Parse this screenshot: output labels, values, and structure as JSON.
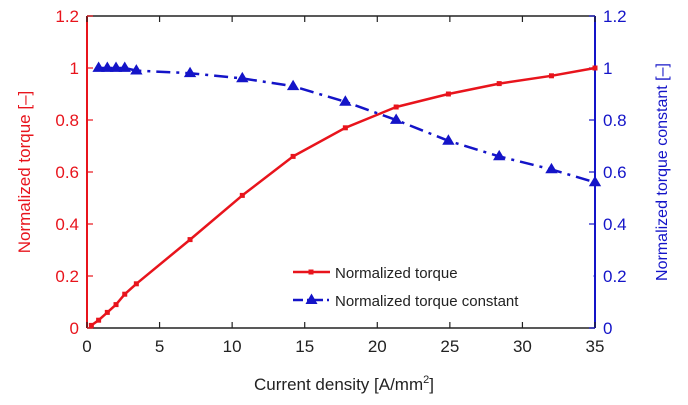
{
  "chart_data": {
    "type": "line",
    "title": "",
    "xlabel": "Current density [A/mm²]",
    "xlabel_main": "Current density [A/mm",
    "xlabel_sup": "2",
    "xlabel_end": "]",
    "ylabel_left": "Normalized torque [–]",
    "ylabel_right": "Normalized torque constant [–]",
    "xlim": [
      0,
      35
    ],
    "ylim_left": [
      0,
      1.2
    ],
    "ylim_right": [
      0,
      1.2
    ],
    "x_ticks": [
      0,
      5,
      10,
      15,
      20,
      25,
      30,
      35
    ],
    "x_tick_labels": [
      "0",
      "5",
      "10",
      "15",
      "20",
      "25",
      "30",
      "35"
    ],
    "y_ticks": [
      0,
      0.2,
      0.4,
      0.6,
      0.8,
      1,
      1.2
    ],
    "y_tick_labels": [
      "0",
      "0.2",
      "0.4",
      "0.6",
      "0.8",
      "1",
      "1.2"
    ],
    "grid": false,
    "legend_position": "bottom-right",
    "series": [
      {
        "name": "Normalized torque",
        "axis": "left",
        "color": "#e8141c",
        "line_style": "solid",
        "marker": "square",
        "x": [
          0.3,
          0.8,
          1.4,
          2.0,
          2.6,
          3.4,
          7.1,
          10.7,
          14.2,
          17.8,
          21.3,
          24.9,
          28.4,
          32.0,
          35.5
        ],
        "y": [
          0.01,
          0.03,
          0.06,
          0.09,
          0.13,
          0.17,
          0.34,
          0.51,
          0.66,
          0.77,
          0.85,
          0.9,
          0.94,
          0.97,
          1.0
        ]
      },
      {
        "name": "Normalized torque constant",
        "axis": "right",
        "color": "#1414c8",
        "line_style": "dashdot",
        "marker": "triangle",
        "x": [
          0.8,
          1.4,
          2.0,
          2.6,
          3.4,
          7.1,
          10.7,
          14.2,
          17.8,
          21.3,
          24.9,
          28.4,
          32.0,
          35.5
        ],
        "y": [
          1.0,
          1.0,
          1.0,
          1.0,
          0.99,
          0.98,
          0.96,
          0.93,
          0.87,
          0.8,
          0.72,
          0.66,
          0.61,
          0.56
        ]
      }
    ]
  }
}
